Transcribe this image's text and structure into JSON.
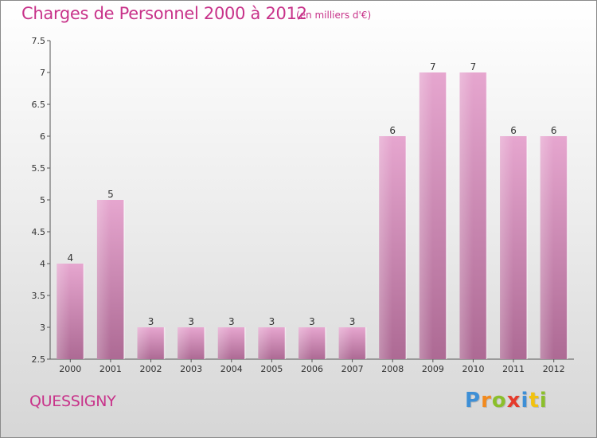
{
  "header": {
    "title": "Charges de Personnel 2000 à 2012",
    "unit": "(en milliers d'€)"
  },
  "footer": {
    "place": "QUESSIGNY",
    "brand_letters": [
      {
        "ch": "P",
        "color": "#3d8fd6"
      },
      {
        "ch": "r",
        "color": "#f28a1e"
      },
      {
        "ch": "o",
        "color": "#8bbf2b"
      },
      {
        "ch": "x",
        "color": "#e53b2c"
      },
      {
        "ch": "i",
        "color": "#3d8fd6"
      },
      {
        "ch": "t",
        "color": "#f2c20f"
      },
      {
        "ch": "i",
        "color": "#8bbf2b"
      }
    ]
  },
  "chart_data": {
    "type": "bar",
    "title": "Charges de Personnel 2000 à 2012",
    "subtitle": "(en milliers d'€)",
    "categories": [
      "2000",
      "2001",
      "2002",
      "2003",
      "2004",
      "2005",
      "2006",
      "2007",
      "2008",
      "2009",
      "2010",
      "2011",
      "2012"
    ],
    "values": [
      4,
      5,
      3,
      3,
      3,
      3,
      3,
      3,
      6,
      7,
      7,
      6,
      6
    ],
    "labels": [
      "4",
      "5",
      "3",
      "3",
      "3",
      "3",
      "3",
      "3",
      "6",
      "7",
      "7",
      "6",
      "6"
    ],
    "ylim": [
      2.5,
      7.5
    ],
    "yticks": [
      "2.5",
      "3",
      "3.5",
      "4",
      "4.5",
      "5",
      "5.5",
      "6",
      "6.5",
      "7",
      "7.5"
    ],
    "grid": false,
    "bar_color": "#d98ab8"
  }
}
